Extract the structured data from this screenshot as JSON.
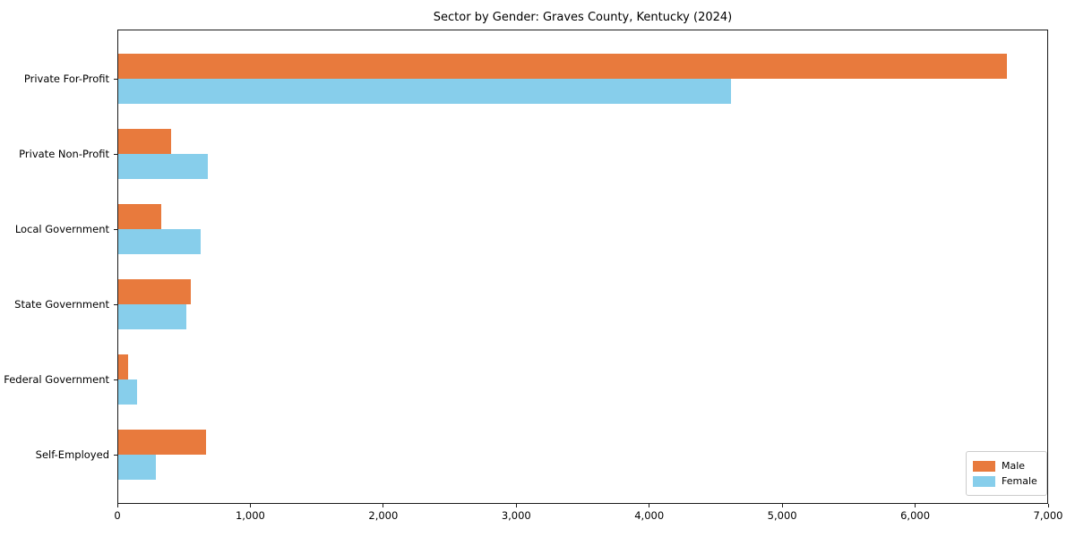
{
  "title": "Sector by Gender: Graves County, Kentucky (2024)",
  "colors": {
    "male": "#e87a3d",
    "female": "#87ceeb",
    "axis": "#1a1a1a",
    "legend_border": "#cccccc",
    "background": "#ffffff"
  },
  "chart_data": {
    "type": "bar",
    "orientation": "horizontal",
    "title": "Sector by Gender: Graves County, Kentucky (2024)",
    "categories": [
      "Private For-Profit",
      "Private Non-Profit",
      "Local Government",
      "State Government",
      "Federal Government",
      "Self-Employed"
    ],
    "series": [
      {
        "name": "Male",
        "color": "#e87a3d",
        "values": [
          6680,
          395,
          325,
          545,
          75,
          660
        ]
      },
      {
        "name": "Female",
        "color": "#87ceeb",
        "values": [
          4610,
          675,
          620,
          515,
          140,
          285
        ]
      }
    ],
    "xlabel": "",
    "ylabel": "",
    "xlim": [
      0,
      7000
    ],
    "xticks": [
      0,
      1000,
      2000,
      3000,
      4000,
      5000,
      6000,
      7000
    ],
    "xtick_labels": [
      "0",
      "1,000",
      "2,000",
      "3,000",
      "4,000",
      "5,000",
      "6,000",
      "7,000"
    ],
    "grid": false,
    "legend_position": "lower right"
  }
}
